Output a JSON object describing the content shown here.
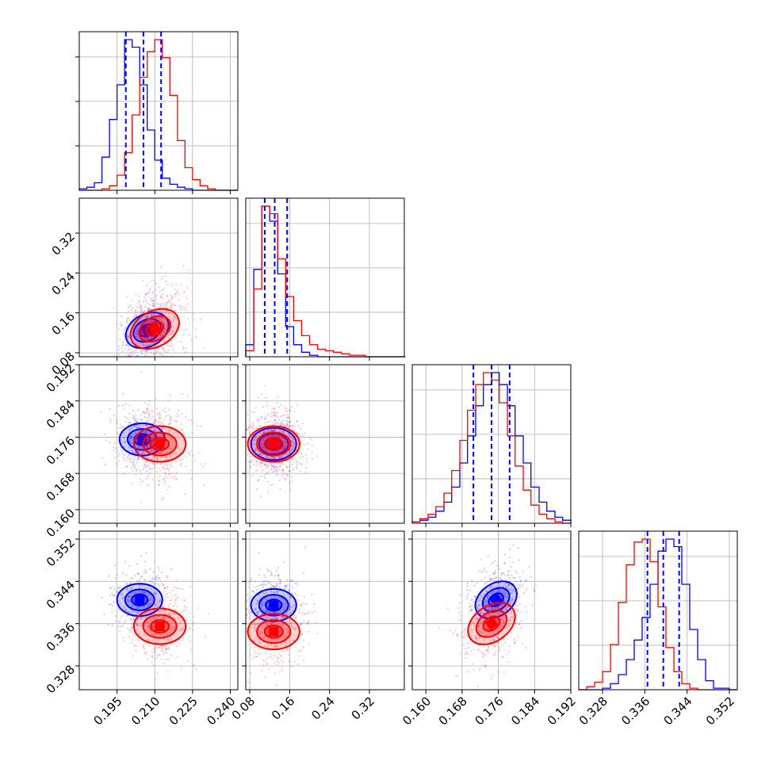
{
  "chart_data": {
    "type": "corner",
    "title": "",
    "grid": true,
    "series": [
      {
        "name": "",
        "color": "#0000ff"
      },
      {
        "name": "",
        "color": "#ff0000"
      }
    ],
    "parameters": [
      {
        "index": 0,
        "range": [
          0.18,
          0.243
        ],
        "ticks": [
          0.195,
          0.21,
          0.225,
          0.24
        ],
        "tick_labels": [
          "0.195",
          "0.210",
          "0.225",
          "0.240"
        ]
      },
      {
        "index": 1,
        "range": [
          0.072,
          0.39
        ],
        "ticks": [
          0.08,
          0.16,
          0.24,
          0.32
        ],
        "tick_labels": [
          "0.08",
          "0.16",
          "0.24",
          "0.32"
        ]
      },
      {
        "index": 2,
        "range": [
          0.157,
          0.192
        ],
        "ticks": [
          0.16,
          0.168,
          0.176,
          0.184,
          0.192
        ],
        "tick_labels": [
          "0.160",
          "0.168",
          "0.176",
          "0.184",
          "0.192"
        ]
      },
      {
        "index": 3,
        "range": [
          0.3235,
          0.3535
        ],
        "ticks": [
          0.328,
          0.336,
          0.344,
          0.352
        ],
        "tick_labels": [
          "0.328",
          "0.336",
          "0.344",
          "0.352"
        ]
      }
    ],
    "marginals": [
      {
        "param": 0,
        "quantile_lines": [
          0.1985,
          0.2055,
          0.2125
        ],
        "hist_bin_edges": [
          0.18,
          0.183,
          0.186,
          0.189,
          0.192,
          0.195,
          0.198,
          0.201,
          0.204,
          0.207,
          0.21,
          0.213,
          0.216,
          0.219,
          0.222,
          0.225,
          0.228,
          0.231,
          0.234,
          0.237,
          0.24,
          0.243
        ],
        "counts": [
          [
            1,
            2,
            5,
            22,
            47,
            70,
            100,
            95,
            70,
            40,
            20,
            8,
            4,
            2,
            1,
            0,
            0,
            0,
            0,
            0,
            0
          ],
          [
            0,
            0,
            0,
            1,
            3,
            10,
            25,
            50,
            75,
            92,
            100,
            88,
            63,
            33,
            15,
            7,
            3,
            1,
            0,
            0,
            0
          ]
        ]
      },
      {
        "param": 1,
        "quantile_lines": [
          0.11,
          0.13,
          0.155
        ],
        "hist_bin_edges": [
          0.072,
          0.088,
          0.104,
          0.12,
          0.136,
          0.152,
          0.168,
          0.184,
          0.2,
          0.216,
          0.232,
          0.248,
          0.264,
          0.28,
          0.296,
          0.312,
          0.328,
          0.344,
          0.36,
          0.376,
          0.392
        ],
        "counts": [
          [
            8,
            58,
            100,
            90,
            55,
            20,
            8,
            3,
            1,
            0,
            0,
            0,
            0,
            0,
            0,
            0,
            0,
            0,
            0,
            0
          ],
          [
            4,
            45,
            100,
            95,
            65,
            40,
            24,
            14,
            8,
            5,
            4,
            3,
            2,
            1,
            1,
            0,
            0,
            0,
            0,
            0
          ]
        ]
      },
      {
        "param": 2,
        "quantile_lines": [
          0.1705,
          0.1745,
          0.1785
        ],
        "hist_bin_edges": [
          0.157,
          0.1587,
          0.1605,
          0.1622,
          0.164,
          0.1657,
          0.1675,
          0.1692,
          0.171,
          0.1727,
          0.1745,
          0.1762,
          0.178,
          0.1797,
          0.1815,
          0.1832,
          0.185,
          0.1867,
          0.1885,
          0.1902,
          0.192
        ],
        "counts": [
          [
            1,
            2,
            4,
            8,
            14,
            24,
            40,
            58,
            78,
            92,
            100,
            92,
            78,
            58,
            40,
            24,
            14,
            8,
            4,
            2
          ],
          [
            1,
            3,
            6,
            11,
            20,
            35,
            55,
            75,
            92,
            100,
            95,
            80,
            58,
            38,
            22,
            12,
            6,
            3,
            1,
            0
          ]
        ]
      },
      {
        "param": 3,
        "quantile_lines": [
          0.3365,
          0.3395,
          0.3425
        ],
        "hist_bin_edges": [
          0.3235,
          0.325,
          0.3265,
          0.328,
          0.3295,
          0.331,
          0.3325,
          0.334,
          0.3355,
          0.337,
          0.3385,
          0.34,
          0.3415,
          0.343,
          0.3445,
          0.346,
          0.3475,
          0.349,
          0.3505,
          0.352,
          0.3535
        ],
        "counts": [
          [
            0,
            0,
            0,
            1,
            4,
            10,
            20,
            33,
            48,
            70,
            92,
            100,
            95,
            70,
            40,
            20,
            6,
            1,
            1,
            0
          ],
          [
            0,
            2,
            5,
            12,
            30,
            58,
            83,
            98,
            100,
            85,
            55,
            28,
            12,
            4,
            1,
            0,
            0,
            0,
            0,
            0
          ]
        ]
      }
    ],
    "pairs": [
      {
        "x": 0,
        "y": 1,
        "peaks": [
          [
            0.207,
            0.125
          ],
          [
            0.21,
            0.128
          ]
        ],
        "tilt": 0.55
      },
      {
        "x": 0,
        "y": 2,
        "peaks": [
          [
            0.205,
            0.1755
          ],
          [
            0.212,
            0.1745
          ]
        ],
        "tilt": 0.0
      },
      {
        "x": 0,
        "y": 3,
        "peaks": [
          [
            0.204,
            0.3405
          ],
          [
            0.212,
            0.3355
          ]
        ],
        "tilt": 0.0
      },
      {
        "x": 1,
        "y": 2,
        "peaks": [
          [
            0.128,
            0.1745
          ],
          [
            0.128,
            0.1745
          ]
        ],
        "tilt": 0.0
      },
      {
        "x": 1,
        "y": 3,
        "peaks": [
          [
            0.128,
            0.3395
          ],
          [
            0.128,
            0.3345
          ]
        ],
        "tilt": 0.0
      },
      {
        "x": 2,
        "y": 3,
        "peaks": [
          [
            0.1755,
            0.3405
          ],
          [
            0.1745,
            0.336
          ]
        ],
        "tilt": 0.7
      }
    ]
  }
}
